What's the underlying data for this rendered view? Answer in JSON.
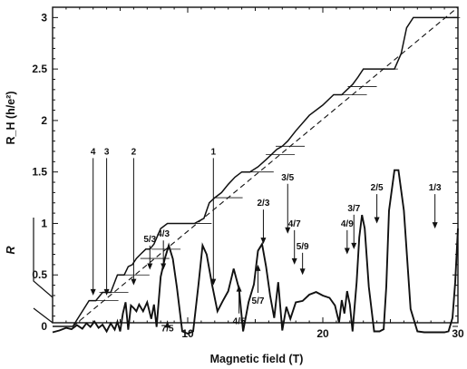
{
  "chart_data": {
    "type": "line",
    "xlabel": "Magnetic field (T)",
    "ylabel_hall": "R_H (h/e²)",
    "ylabel_r": "R",
    "xlim": [
      0,
      30
    ],
    "ylim_hall": [
      0,
      3.1
    ],
    "x_ticks": [
      10,
      20,
      30
    ],
    "y_ticks": [
      0,
      0.5,
      1,
      1.5,
      2,
      2.5,
      3
    ],
    "y_tick_labels": [
      "0",
      "0.5",
      "1",
      "1.5",
      "2",
      "2.5",
      "3"
    ],
    "series": [
      {
        "style": "solid",
        "x": [
          0,
          1.5,
          2.7,
          3.2,
          3.7,
          4.3,
          4.8,
          5.3,
          5.6,
          5.9,
          6.2,
          6.5,
          6.9,
          7.2,
          7.5,
          8.0,
          8.5,
          9.5,
          10.5,
          11.2,
          11.6,
          12.0,
          12.5,
          13.0,
          13.5,
          14.0,
          14.6,
          15.2,
          15.8,
          16.2,
          16.6,
          17.0,
          17.4,
          18.0,
          19.0,
          20.0,
          20.8,
          21.4,
          21.8,
          22.2,
          22.6,
          23.0,
          23.8,
          24.5,
          25.3,
          25.8,
          26.2,
          26.7,
          27.2,
          28.0,
          29.0,
          30.0
        ],
        "values": [
          0,
          0,
          0.25,
          0.25,
          0.33,
          0.33,
          0.5,
          0.5,
          0.58,
          0.6,
          0.66,
          0.7,
          0.75,
          0.75,
          0.8,
          0.95,
          1.0,
          1.0,
          1.0,
          1.05,
          1.2,
          1.25,
          1.3,
          1.38,
          1.45,
          1.5,
          1.5,
          1.55,
          1.62,
          1.67,
          1.72,
          1.75,
          1.8,
          1.9,
          2.05,
          2.15,
          2.25,
          2.25,
          2.3,
          2.35,
          2.42,
          2.5,
          2.5,
          2.5,
          2.5,
          2.65,
          2.9,
          3.0,
          3.0,
          3.0,
          3.0,
          3.0
        ]
      },
      {
        "style": "dashed",
        "x": [
          1.5,
          30
        ],
        "values": [
          0,
          3.1
        ]
      },
      {
        "style": "solid",
        "x": [
          0,
          0.5,
          1.0,
          1.4,
          1.8,
          2.2,
          2.5,
          2.8,
          3.1,
          3.4,
          3.7,
          4.0,
          4.3,
          4.6,
          4.8,
          5.0,
          5.2,
          5.4,
          5.6,
          5.8,
          6.0,
          6.2,
          6.4,
          6.7,
          7.0,
          7.3,
          7.5,
          7.7,
          8.0,
          8.3,
          8.6,
          8.9,
          9.2,
          9.6,
          10.0,
          10.4,
          10.8,
          11.1,
          11.4,
          11.8,
          12.2,
          12.6,
          13.0,
          13.4,
          13.8,
          14.1,
          14.5,
          14.9,
          15.2,
          15.5,
          15.8,
          16.1,
          16.4,
          16.7,
          17.0,
          17.3,
          17.6,
          18.0,
          18.5,
          19.0,
          19.5,
          20.0,
          20.5,
          20.9,
          21.2,
          21.4,
          21.6,
          21.8,
          22.0,
          22.2,
          22.5,
          22.7,
          22.9,
          23.1,
          23.4,
          23.8,
          24.2,
          24.5,
          24.7,
          24.9,
          25.3,
          25.6,
          26.0,
          26.5,
          27.0,
          27.5,
          28.0,
          28.5,
          29.0,
          29.3,
          29.6,
          29.8,
          30.0
        ],
        "values": [
          -0.52,
          -0.48,
          -0.42,
          -0.45,
          -0.36,
          -0.44,
          -0.32,
          -0.4,
          -0.28,
          -0.42,
          -0.35,
          -0.5,
          -0.32,
          -0.46,
          -0.28,
          -0.5,
          -0.1,
          0.15,
          -0.46,
          0.08,
          0.02,
          -0.05,
          0.1,
          -0.05,
          0.15,
          -0.22,
          0.1,
          -0.4,
          0.72,
          1.12,
          1.42,
          1.12,
          0.48,
          -0.5,
          -0.55,
          -0.5,
          0.55,
          1.42,
          1.22,
          0.55,
          -0.05,
          0.18,
          0.4,
          0.9,
          0.45,
          -0.5,
          0.15,
          0.55,
          1.3,
          1.45,
          0.95,
          0.3,
          -0.2,
          0.6,
          -0.48,
          0.05,
          -0.22,
          0.15,
          0.18,
          0.32,
          0.38,
          0.3,
          0.25,
          0.08,
          -0.3,
          0.2,
          -0.1,
          0.4,
          0.1,
          -0.5,
          0.6,
          1.6,
          2.1,
          1.8,
          0.5,
          -0.5,
          -0.5,
          -0.45,
          0.5,
          2.2,
          3.1,
          3.1,
          2.2,
          0.0,
          -0.5,
          -0.52,
          -0.52,
          -0.52,
          -0.52,
          -0.5,
          -0.2,
          0.6,
          1.8
        ]
      }
    ],
    "annotations": [
      {
        "text": "4",
        "x": 3.0,
        "y": 1.67,
        "arrow_to": 0.3
      },
      {
        "text": "3",
        "x": 4.0,
        "y": 1.67,
        "arrow_to": 0.3
      },
      {
        "text": "2",
        "x": 6.0,
        "y": 1.67,
        "arrow_to": 0.4
      },
      {
        "text": "1",
        "x": 11.9,
        "y": 1.67,
        "arrow_to": 0.4
      },
      {
        "text": "5/3",
        "x": 7.2,
        "y": 0.82,
        "arrow_to": 0.55
      },
      {
        "text": "4/3",
        "x": 8.2,
        "y": 0.87,
        "arrow_to": 0.55
      },
      {
        "text": "7/5",
        "x": 8.5,
        "y": -0.05,
        "arrow_to": 0.05
      },
      {
        "text": "2/3",
        "x": 15.6,
        "y": 1.17,
        "arrow_to": 0.8
      },
      {
        "text": "4/5",
        "x": 13.8,
        "y": 0.02,
        "arrow_to": 0.4
      },
      {
        "text": "5/7",
        "x": 15.2,
        "y": 0.22,
        "arrow_to": 0.6
      },
      {
        "text": "3/5",
        "x": 17.4,
        "y": 1.42,
        "arrow_to": 0.9
      },
      {
        "text": "4/7",
        "x": 17.9,
        "y": 0.97,
        "arrow_to": 0.6
      },
      {
        "text": "5/9",
        "x": 18.5,
        "y": 0.75,
        "arrow_to": 0.5
      },
      {
        "text": "4/9",
        "x": 21.8,
        "y": 0.97,
        "arrow_to": 0.7
      },
      {
        "text": "3/7",
        "x": 22.3,
        "y": 1.12,
        "arrow_to": 0.75
      },
      {
        "text": "2/5",
        "x": 24.0,
        "y": 1.32,
        "arrow_to": 1.0
      },
      {
        "text": "1/3",
        "x": 28.3,
        "y": 1.32,
        "arrow_to": 0.95
      }
    ]
  }
}
